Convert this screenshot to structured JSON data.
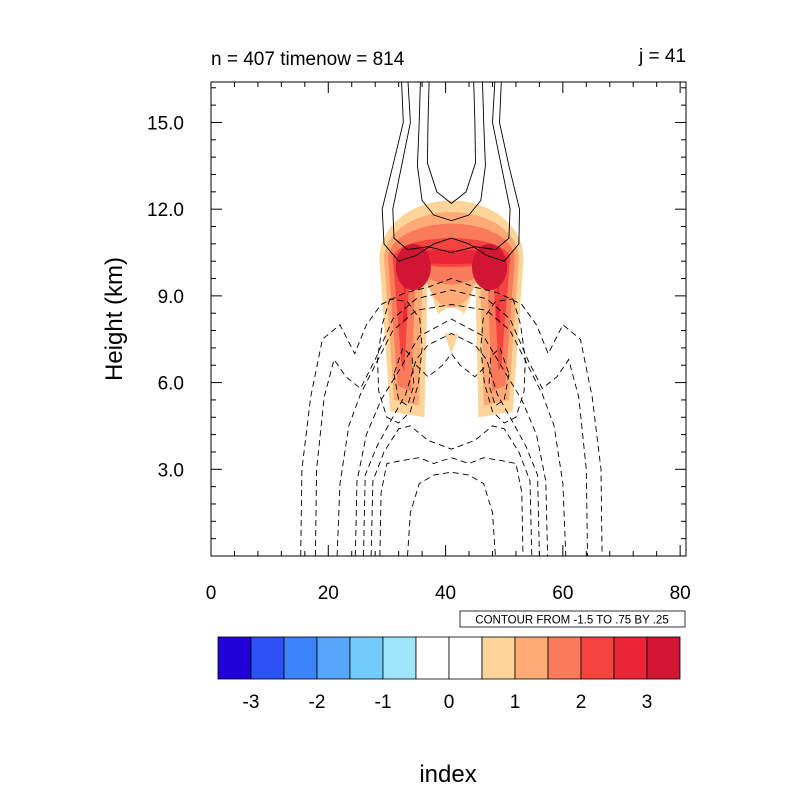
{
  "chart_data": {
    "type": "contour",
    "title_left": "n = 407 timenow = 814",
    "title_right": "j = 41",
    "xlabel": "index",
    "ylabel": "Height (km)",
    "xlim": [
      0,
      81
    ],
    "ylim": [
      0,
      16.4
    ],
    "x_ticks": [
      0,
      20,
      40,
      60,
      80
    ],
    "x_tick_labels": [
      "0",
      "20",
      "40",
      "60",
      "80"
    ],
    "y_ticks": [
      3,
      6,
      9,
      12,
      15
    ],
    "y_tick_labels": [
      "3.0",
      "6.0",
      "9.0",
      "12.0",
      "15.0"
    ],
    "contour_note": "CONTOUR FROM -1.5 TO .75 BY .25",
    "colorbar": {
      "labels": [
        "-3",
        "-2",
        "-1",
        "0",
        "1",
        "2",
        "3"
      ],
      "label_values": [
        -3,
        -2,
        -1,
        0,
        1,
        2,
        3
      ],
      "boundaries": [
        -3.5,
        -3,
        -2.5,
        -2,
        -1.5,
        -1,
        -0.5,
        0,
        0.5,
        1,
        1.5,
        2,
        2.5,
        3,
        3.5
      ],
      "colors": [
        "#2200d8",
        "#2c52f5",
        "#3c84fb",
        "#56a6fb",
        "#72cbfb",
        "#9fe6fd",
        "#ffffff",
        "#ffffff",
        "#fdd49a",
        "#fdaa76",
        "#fa7b5a",
        "#f5443f",
        "#ea2538",
        "#d11633"
      ]
    },
    "shaded_field": {
      "description_levels": [
        0.5,
        1.0,
        1.5,
        2.0,
        2.5,
        3.0
      ],
      "peak_value": 3.2,
      "peak_center": [
        41,
        10.3
      ]
    },
    "line_contours": {
      "solid_positive": true,
      "dashed_negative": true,
      "min": -1.5,
      "max": 0.75,
      "interval": 0.25
    }
  }
}
